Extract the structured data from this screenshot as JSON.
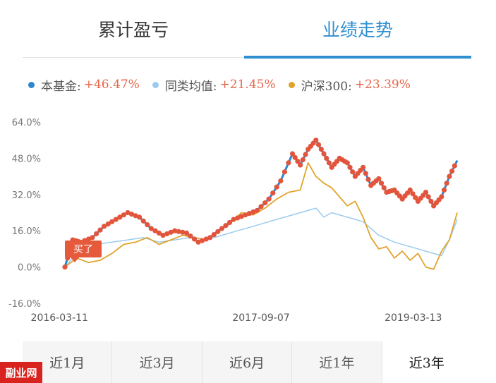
{
  "tabs_top": [
    {
      "label": "累计盈亏",
      "active": false
    },
    {
      "label": "业绩走势",
      "active": true
    }
  ],
  "legend": [
    {
      "label": "本基金:",
      "value": "+46.47%",
      "color": "#2e86cf"
    },
    {
      "label": "同类均值:",
      "value": "+21.45%",
      "color": "#9ccbee"
    },
    {
      "label": "沪深300:",
      "value": "+23.39%",
      "color": "#e2a32b"
    }
  ],
  "buy_marker": "买了",
  "tabs_bottom": [
    {
      "label": "近1月",
      "active": false
    },
    {
      "label": "近3月",
      "active": false
    },
    {
      "label": "近6月",
      "active": false
    },
    {
      "label": "近1年",
      "active": false
    },
    {
      "label": "近3年",
      "active": true
    }
  ],
  "watermark": "副业网",
  "colors": {
    "fund": "#2e86cf",
    "peer": "#9ccbee",
    "index": "#e2a32b",
    "markers": "#e2553c",
    "accent": "#2f8fd0"
  },
  "chart_data": {
    "type": "line",
    "xlabel": "",
    "ylabel": "",
    "ylim": [
      -16,
      64
    ],
    "y_ticks": [
      "64.0%",
      "48.0%",
      "32.0%",
      "16.0%",
      "0.0%",
      "-16.0%"
    ],
    "y_tick_values": [
      64,
      48,
      32,
      16,
      0,
      -16
    ],
    "x_tick_labels": [
      "2016-03-11",
      "2017-09-07",
      "2019-03-13"
    ],
    "x_tick_positions": [
      0.04,
      0.5,
      0.96
    ],
    "grid": false,
    "legend_position": "top",
    "series": [
      {
        "name": "本基金",
        "x": [
          0.0,
          0.02,
          0.04,
          0.07,
          0.1,
          0.13,
          0.16,
          0.19,
          0.22,
          0.25,
          0.28,
          0.31,
          0.34,
          0.37,
          0.4,
          0.43,
          0.46,
          0.49,
          0.52,
          0.55,
          0.58,
          0.6,
          0.62,
          0.64,
          0.66,
          0.68,
          0.7,
          0.72,
          0.74,
          0.76,
          0.78,
          0.8,
          0.82,
          0.84,
          0.86,
          0.88,
          0.9,
          0.92,
          0.94,
          0.96,
          0.98,
          1.0
        ],
        "values": [
          0,
          12,
          11,
          13,
          18,
          21,
          24,
          22,
          17,
          14,
          16,
          15,
          11,
          13,
          17,
          21,
          23,
          25,
          30,
          38,
          50,
          45,
          52,
          56,
          50,
          44,
          48,
          46,
          40,
          44,
          36,
          39,
          33,
          34,
          30,
          34,
          29,
          33,
          27,
          31,
          40,
          47
        ]
      },
      {
        "name": "同类均值",
        "x": [
          0.0,
          0.04,
          0.08,
          0.12,
          0.16,
          0.2,
          0.24,
          0.28,
          0.32,
          0.36,
          0.4,
          0.44,
          0.48,
          0.52,
          0.56,
          0.6,
          0.64,
          0.66,
          0.68,
          0.72,
          0.76,
          0.8,
          0.84,
          0.88,
          0.92,
          0.96,
          0.98,
          1.0
        ],
        "values": [
          0,
          8,
          10,
          11,
          12,
          13,
          11,
          12,
          13,
          12,
          14,
          16,
          18,
          20,
          22,
          24,
          26,
          22,
          24,
          22,
          20,
          14,
          11,
          9,
          7,
          5,
          12,
          21
        ]
      },
      {
        "name": "沪深300",
        "x": [
          0.0,
          0.03,
          0.06,
          0.09,
          0.12,
          0.15,
          0.18,
          0.21,
          0.24,
          0.27,
          0.3,
          0.33,
          0.36,
          0.39,
          0.42,
          0.45,
          0.48,
          0.51,
          0.54,
          0.57,
          0.6,
          0.62,
          0.64,
          0.66,
          0.68,
          0.7,
          0.72,
          0.74,
          0.76,
          0.78,
          0.8,
          0.82,
          0.84,
          0.86,
          0.88,
          0.9,
          0.92,
          0.94,
          0.96,
          0.98,
          1.0
        ],
        "values": [
          0,
          4,
          2,
          3,
          6,
          10,
          11,
          13,
          10,
          12,
          14,
          13,
          12,
          16,
          19,
          24,
          23,
          26,
          30,
          33,
          34,
          46,
          40,
          37,
          35,
          31,
          27,
          29,
          22,
          13,
          8,
          9,
          4,
          7,
          3,
          6,
          0,
          -1,
          7,
          12,
          24
        ]
      }
    ]
  }
}
